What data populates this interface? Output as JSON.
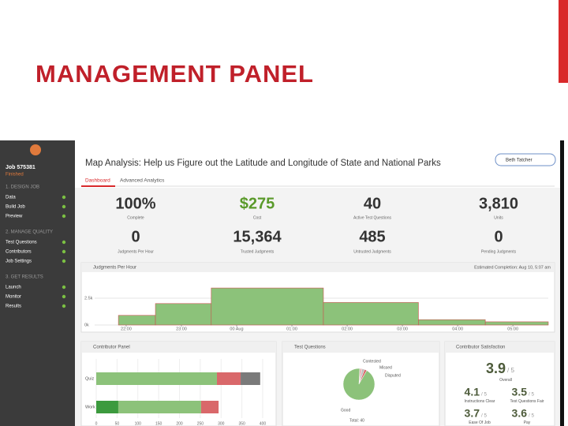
{
  "slide_title": "MANAGEMENT PANEL",
  "sidebar": {
    "job": "Job 575381",
    "status": "Finished",
    "sections": [
      {
        "heading": "1. DESIGN JOB",
        "items": [
          "Data",
          "Build Job",
          "Preview"
        ]
      },
      {
        "heading": "2. MANAGE QUALITY",
        "items": [
          "Test Questions",
          "Contributors",
          "Job Settings"
        ]
      },
      {
        "heading": "3. GET RESULTS",
        "items": [
          "Launch",
          "Monitor",
          "Results"
        ]
      }
    ]
  },
  "header": {
    "title": "Map Analysis: Help us Figure out the Latitude and Longitude of State and National Parks",
    "user": "Beth Tatcher",
    "tabs": [
      "Dashboard",
      "Advanced Analytics"
    ]
  },
  "stats": [
    {
      "value": "100%",
      "label": "Complete"
    },
    {
      "value": "$275",
      "label": "Cost"
    },
    {
      "value": "40",
      "label": "Active Test Questions"
    },
    {
      "value": "3,810",
      "label": "Units"
    },
    {
      "value": "0",
      "label": "Judgments Per Hour"
    },
    {
      "value": "15,364",
      "label": "Trusted Judgments"
    },
    {
      "value": "485",
      "label": "Untrusted Judgments"
    },
    {
      "value": "0",
      "label": "Pending Judgments"
    }
  ],
  "chart_data": [
    {
      "type": "histogram",
      "title": "Judgments Per Hour",
      "annotation": "Estimated Completion: Aug 10, 5:07 am",
      "bins": [
        -0.57,
        -0.14,
        0.53,
        1.54,
        3.57,
        5.29,
        6.5,
        7.64
      ],
      "values": [
        0,
        900,
        2000,
        3450,
        2100,
        500,
        300
      ],
      "color": "#8cc27a",
      "xlim": [
        -0.57,
        7.64
      ],
      "xticks": [
        {
          "value": 0,
          "label": "22:00"
        },
        {
          "value": 1,
          "label": "23:00"
        },
        {
          "value": 2,
          "label": "00 Aug"
        },
        {
          "value": 3,
          "label": "01:00"
        },
        {
          "value": 4,
          "label": "02:00"
        },
        {
          "value": 5,
          "label": "03:00"
        },
        {
          "value": 6,
          "label": "04:00"
        },
        {
          "value": 7,
          "label": "05:00"
        }
      ],
      "ylim": [
        0,
        3500
      ],
      "yticks": [
        {
          "value": 0,
          "label": "0k"
        },
        {
          "value": 2500,
          "label": "2.5k"
        }
      ]
    },
    {
      "type": "bar",
      "orientation": "horizontal",
      "stacked": true,
      "title": "Contributor Panel",
      "categories": [
        "Quiz",
        "Work"
      ],
      "series": [
        {
          "color": "#3c9a3e",
          "values": [
            0,
            53
          ]
        },
        {
          "color": "#8cc27a",
          "values": [
            290,
            199
          ]
        },
        {
          "color": "#d9686a",
          "values": [
            57,
            42
          ]
        },
        {
          "color": "#7a7a7a",
          "values": [
            47,
            0
          ]
        }
      ],
      "xlim": [
        0,
        400
      ],
      "xticks": [
        0,
        50,
        100,
        150,
        200,
        250,
        300,
        350,
        400
      ]
    },
    {
      "type": "pie",
      "title": "Test Questions",
      "categories": [
        "Contested",
        "Missed",
        "Disputed",
        "Good"
      ],
      "values": [
        1,
        1,
        1,
        37
      ],
      "colors": [
        "#e8b4b4",
        "#bbbbbb",
        "#d9686a",
        "#8cc27a"
      ],
      "footer": "Total: 40"
    }
  ],
  "satisfaction": {
    "title": "Contributor Satisfaction",
    "scale": "/ 5",
    "overall": {
      "value": 3.9,
      "label": "Overall"
    },
    "items": [
      {
        "value": 4.1,
        "label": "Instructions Clear"
      },
      {
        "value": 3.5,
        "label": "Test Questions Fair"
      },
      {
        "value": 3.7,
        "label": "Ease Of Job"
      },
      {
        "value": 3.6,
        "label": "Pay"
      }
    ]
  }
}
